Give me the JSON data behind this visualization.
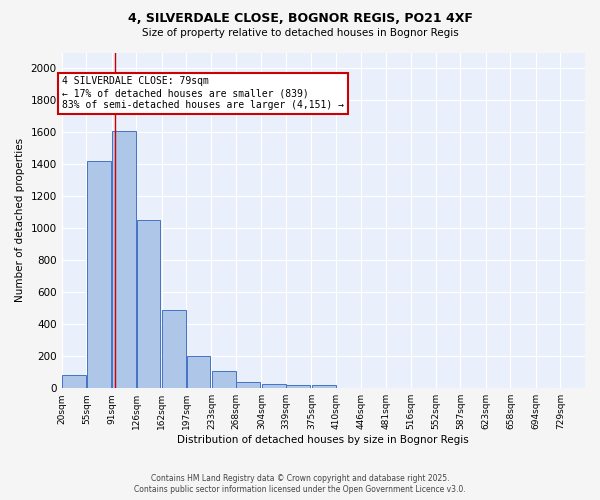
{
  "title1": "4, SILVERDALE CLOSE, BOGNOR REGIS, PO21 4XF",
  "title2": "Size of property relative to detached houses in Bognor Regis",
  "xlabel": "Distribution of detached houses by size in Bognor Regis",
  "ylabel": "Number of detached properties",
  "bar_values": [
    80,
    1420,
    1610,
    1050,
    490,
    200,
    105,
    40,
    28,
    20,
    18,
    0,
    0,
    0,
    0,
    0,
    0,
    0,
    0,
    0
  ],
  "categories": [
    "20sqm",
    "55sqm",
    "91sqm",
    "126sqm",
    "162sqm",
    "197sqm",
    "233sqm",
    "268sqm",
    "304sqm",
    "339sqm",
    "375sqm",
    "410sqm",
    "446sqm",
    "481sqm",
    "516sqm",
    "552sqm",
    "587sqm",
    "623sqm",
    "658sqm",
    "694sqm",
    "729sqm"
  ],
  "bar_color": "#aec6e8",
  "bar_edge_color": "#4472c4",
  "bg_color": "#eaf0fb",
  "grid_color": "#ffffff",
  "annotation_text": "4 SILVERDALE CLOSE: 79sqm\n← 17% of detached houses are smaller (839)\n83% of semi-detached houses are larger (4,151) →",
  "vline_x": 79,
  "vline_color": "#cc0000",
  "annotation_box_color": "#ffffff",
  "annotation_box_edge_color": "#cc0000",
  "ylim": [
    0,
    2100
  ],
  "yticks": [
    0,
    200,
    400,
    600,
    800,
    1000,
    1200,
    1400,
    1600,
    1800,
    2000
  ],
  "bin_width": 35,
  "centers": [
    20,
    55,
    91,
    126,
    162,
    197,
    233,
    268,
    304,
    339,
    375,
    410,
    446,
    481,
    516,
    552,
    587,
    623,
    658,
    694
  ],
  "fig_bg_color": "#f5f5f5",
  "footer1": "Contains HM Land Registry data © Crown copyright and database right 2025.",
  "footer2": "Contains public sector information licensed under the Open Government Licence v3.0."
}
